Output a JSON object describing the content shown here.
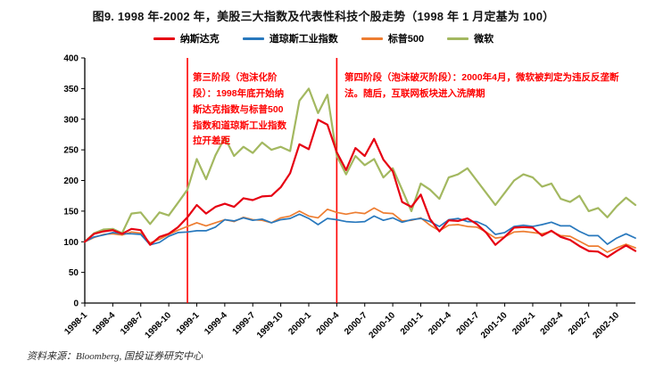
{
  "title": "图9. 1998 年-2002 年，美股三大指数及代表性科技个股走势（1998 年 1 月定基为 100）",
  "source": "资料来源：Bloomberg, 国投证券研究中心",
  "legend": [
    {
      "label": "纳斯达克",
      "color": "#e60012"
    },
    {
      "label": "道琼斯工业指数",
      "color": "#2878bd"
    },
    {
      "label": "标普500",
      "color": "#ed7d31"
    },
    {
      "label": "微软",
      "color": "#a3b860"
    }
  ],
  "annotations": [
    {
      "text": "第三阶段（泡沫化阶段）：1998年底开始纳斯达克指数与标普500指数和道琼斯工业指数拉开差距",
      "color": "#fe0000"
    },
    {
      "text": "第四阶段（泡沫破灭阶段）：2000年4月，微软被判定为违反反垄断法。随后，互联网板块进入洗牌期",
      "color": "#fe0000"
    }
  ],
  "chart_data": {
    "type": "line",
    "title": "图9. 1998 年-2002 年，美股三大指数及代表性科技个股走势（1998 年 1 月定基为 100）",
    "xlabel": "",
    "ylabel": "",
    "ylim": [
      0,
      400
    ],
    "y_ticks": [
      0,
      50,
      100,
      150,
      200,
      250,
      300,
      350,
      400
    ],
    "grid": false,
    "legend_position": "top",
    "x": [
      "1998-1",
      "1998-2",
      "1998-3",
      "1998-4",
      "1998-5",
      "1998-6",
      "1998-7",
      "1998-8",
      "1998-9",
      "1998-10",
      "1998-11",
      "1998-12",
      "1999-1",
      "1999-2",
      "1999-3",
      "1999-4",
      "1999-5",
      "1999-6",
      "1999-7",
      "1999-8",
      "1999-9",
      "1999-10",
      "1999-11",
      "1999-12",
      "2000-1",
      "2000-2",
      "2000-3",
      "2000-4",
      "2000-5",
      "2000-6",
      "2000-7",
      "2000-8",
      "2000-9",
      "2000-10",
      "2000-11",
      "2000-12",
      "2001-1",
      "2001-2",
      "2001-3",
      "2001-4",
      "2001-5",
      "2001-6",
      "2001-7",
      "2001-8",
      "2001-9",
      "2001-10",
      "2001-11",
      "2001-12",
      "2002-1",
      "2002-2",
      "2002-3",
      "2002-4",
      "2002-5",
      "2002-6",
      "2002-7",
      "2002-8",
      "2002-9",
      "2002-10",
      "2002-11",
      "2002-12"
    ],
    "x_tick_labels": [
      "1998-1",
      "1998-4",
      "1998-7",
      "1998-10",
      "1999-1",
      "1999-4",
      "1999-7",
      "1999-10",
      "2000-1",
      "2000-4",
      "2000-7",
      "2000-10",
      "2001-1",
      "2001-4",
      "2001-7",
      "2001-10",
      "2002-1",
      "2002-4",
      "2002-7",
      "2002-10"
    ],
    "vlines": [
      {
        "x": "1998-12",
        "color": "#fe0000"
      },
      {
        "x": "2000-4",
        "color": "#fe0000"
      }
    ],
    "series": [
      {
        "name": "纳斯达克",
        "color": "#e60012",
        "values": [
          100,
          113,
          117,
          119,
          113,
          121,
          119,
          95,
          108,
          113,
          124,
          140,
          160,
          146,
          157,
          162,
          157,
          171,
          168,
          174,
          175,
          189,
          212,
          259,
          251,
          299,
          291,
          246,
          217,
          253,
          240,
          268,
          234,
          215,
          165,
          157,
          177,
          137,
          117,
          135,
          134,
          138,
          129,
          115,
          95,
          108,
          123,
          124,
          123,
          110,
          118,
          108,
          103,
          93,
          85,
          84,
          75,
          85,
          94,
          85
        ]
      },
      {
        "name": "道琼斯工业指数",
        "color": "#2878bd",
        "values": [
          100,
          108,
          111,
          115,
          113,
          113,
          112,
          95,
          99,
          109,
          115,
          116,
          118,
          118,
          124,
          136,
          134,
          139,
          135,
          137,
          131,
          136,
          138,
          145,
          138,
          128,
          138,
          136,
          133,
          132,
          133,
          142,
          135,
          139,
          132,
          136,
          138,
          133,
          125,
          136,
          138,
          133,
          133,
          126,
          112,
          115,
          125,
          127,
          125,
          128,
          132,
          126,
          126,
          117,
          110,
          110,
          96,
          106,
          113,
          106
        ]
      },
      {
        "name": "标普500",
        "color": "#ed7d31",
        "values": [
          100,
          107,
          112,
          113,
          111,
          116,
          114,
          98,
          104,
          112,
          119,
          125,
          131,
          126,
          131,
          136,
          133,
          140,
          136,
          135,
          131,
          139,
          142,
          150,
          142,
          139,
          153,
          148,
          145,
          148,
          146,
          155,
          147,
          146,
          134,
          135,
          139,
          127,
          118,
          127,
          128,
          125,
          124,
          116,
          106,
          108,
          116,
          117,
          115,
          113,
          117,
          110,
          109,
          101,
          93,
          93,
          83,
          90,
          96,
          90
        ]
      },
      {
        "name": "微软",
        "color": "#a3b860",
        "values": [
          100,
          114,
          120,
          121,
          114,
          146,
          148,
          129,
          148,
          143,
          164,
          185,
          235,
          202,
          241,
          270,
          240,
          255,
          245,
          262,
          250,
          255,
          248,
          330,
          350,
          310,
          340,
          240,
          210,
          240,
          225,
          235,
          205,
          220,
          185,
          150,
          195,
          185,
          170,
          205,
          210,
          220,
          200,
          180,
          160,
          180,
          200,
          210,
          205,
          190,
          195,
          170,
          165,
          175,
          150,
          155,
          140,
          158,
          172,
          160
        ]
      }
    ]
  }
}
